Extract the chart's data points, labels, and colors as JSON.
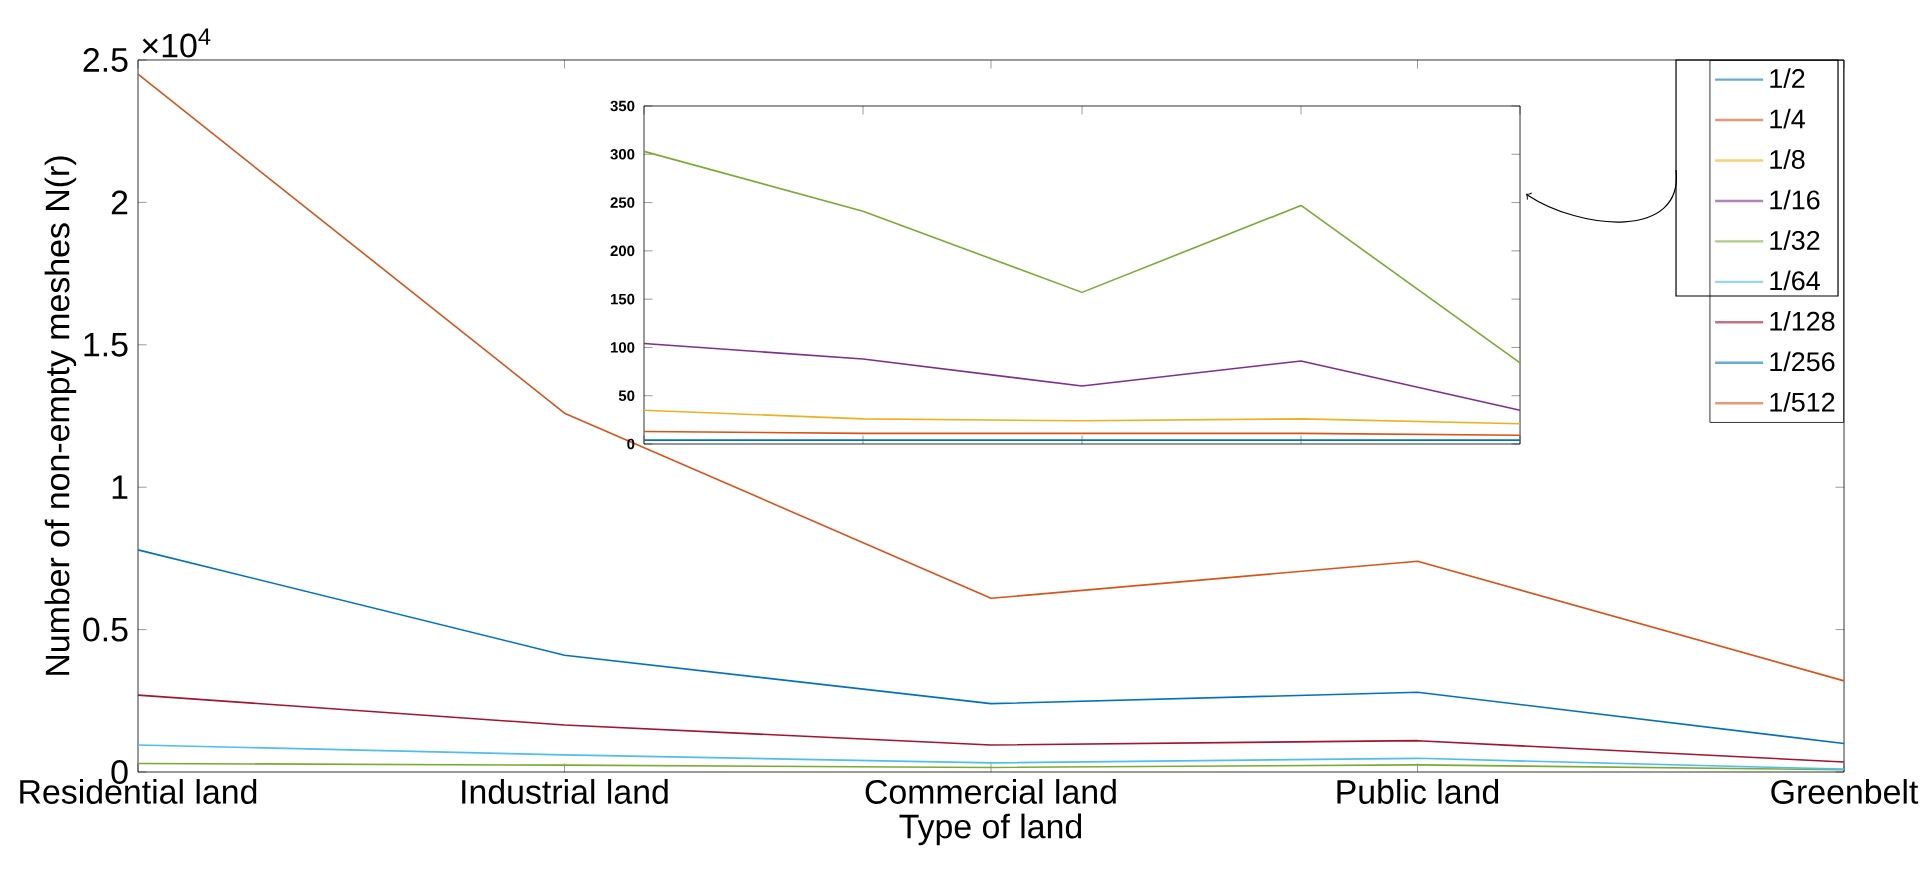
{
  "chart_data": [
    {
      "type": "line",
      "xlabel": "Type of land",
      "ylabel": "Number of non-empty meshes N(r)",
      "categories": [
        "Residential land",
        "Industrial land",
        "Commercial land",
        "Public land",
        "Greenbelt"
      ],
      "ylim": [
        0,
        2.5
      ],
      "yticks": [
        0,
        0.5,
        1,
        1.5,
        2,
        2.5
      ],
      "annotations": [
        "×10$^{4}$"
      ],
      "legend": "top right",
      "series": [
        {
          "name": "1/2",
          "color": "#0072bd",
          "values": [
            null,
            null,
            null,
            null,
            null
          ]
        },
        {
          "name": "1/4",
          "color": "#d95319",
          "values": [
            null,
            null,
            null,
            null,
            null
          ]
        },
        {
          "name": "1/8",
          "color": "#edb120",
          "values": [
            null,
            null,
            null,
            null,
            null
          ]
        },
        {
          "name": "1/16",
          "color": "#7e2f8e",
          "values": [
            null,
            null,
            null,
            null,
            null
          ]
        },
        {
          "name": "1/32",
          "color": "#77ac30",
          "values": [
            0.03,
            0.024,
            0.016,
            0.025,
            0.008
          ]
        },
        {
          "name": "1/64",
          "color": "#4dbeee",
          "values": [
            0.095,
            0.06,
            0.032,
            0.048,
            0.01
          ]
        },
        {
          "name": "1/128",
          "color": "#a2142f",
          "values": [
            0.27,
            0.165,
            0.095,
            0.11,
            0.035
          ]
        },
        {
          "name": "1/256",
          "color": "#0072bd",
          "values": [
            0.78,
            0.41,
            0.24,
            0.28,
            0.1
          ]
        },
        {
          "name": "1/512",
          "color": "#d95319",
          "values": [
            2.45,
            1.26,
            0.61,
            0.74,
            0.32
          ]
        }
      ]
    },
    {
      "type": "line",
      "categories": [
        null,
        null,
        null,
        null,
        null
      ],
      "ylim": [
        0,
        350
      ],
      "yticks": [
        0,
        50,
        100,
        150,
        200,
        250,
        300,
        350
      ],
      "tick_labels": "y",
      "series": [
        {
          "color": "#0072bd",
          "values": [
            4,
            4,
            4,
            4,
            4
          ]
        },
        {
          "color": "#d95319",
          "values": [
            13,
            11,
            11,
            11,
            9
          ]
        },
        {
          "color": "#edb120",
          "values": [
            35,
            26,
            24,
            26,
            21
          ]
        },
        {
          "color": "#7e2f8e",
          "values": [
            104,
            88,
            60,
            86,
            35
          ]
        },
        {
          "color": "#77ac30",
          "values": [
            303,
            241,
            157,
            247,
            84
          ]
        }
      ]
    }
  ]
}
